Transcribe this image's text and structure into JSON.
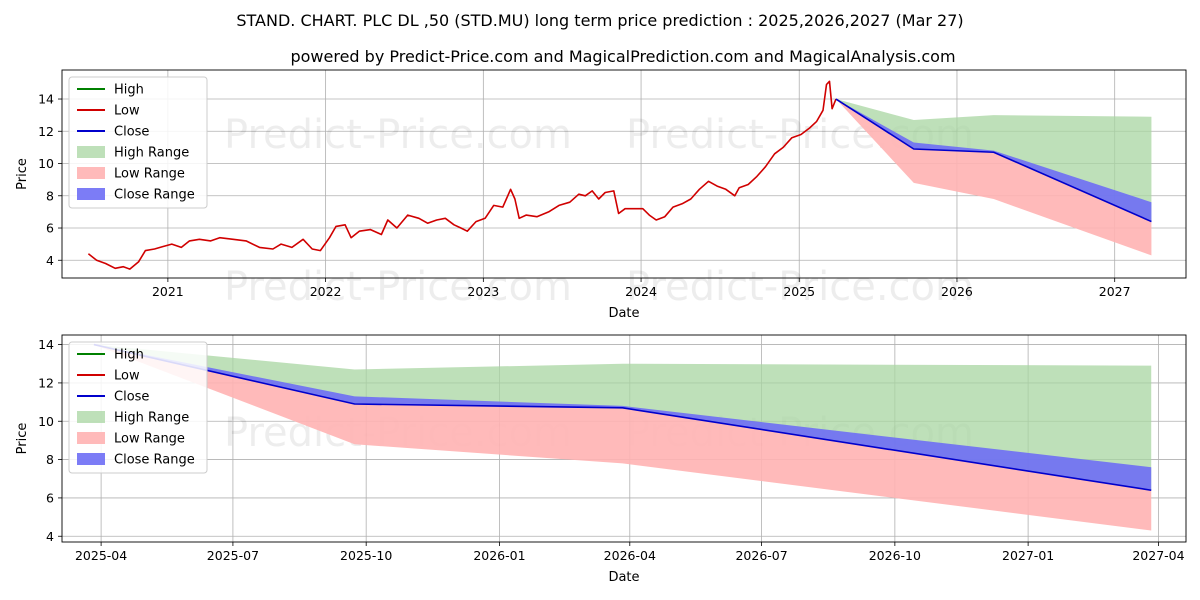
{
  "title": "STAND. CHART. PLC DL ,50 (STD.MU) long term price prediction : 2025,2026,2027 (Mar 27)",
  "subtitle": "powered by Predict-Price.com and MagicalPrediction.com and MagicalAnalysis.com",
  "watermark": "Predict-Price.com",
  "colors": {
    "high": "#008000",
    "low": "#d00000",
    "close": "#0000cc",
    "high_range": "#a8d5a2",
    "low_range": "#ffb3b3",
    "close_range": "#6e6ef5"
  },
  "chart_data": [
    {
      "type": "line",
      "xlabel": "Date",
      "ylabel": "Price",
      "xlim": [
        "2020-05-01",
        "2027-06-15"
      ],
      "ylim": [
        2.9,
        15.8
      ],
      "xticks": [
        {
          "date": "2021-01-01",
          "label": "2021"
        },
        {
          "date": "2022-01-01",
          "label": "2022"
        },
        {
          "date": "2023-01-01",
          "label": "2023"
        },
        {
          "date": "2024-01-01",
          "label": "2024"
        },
        {
          "date": "2025-01-01",
          "label": "2025"
        },
        {
          "date": "2026-01-01",
          "label": "2026"
        },
        {
          "date": "2027-01-01",
          "label": "2027"
        }
      ],
      "yticks": [
        4,
        6,
        8,
        10,
        12,
        14
      ],
      "grid": true,
      "legend_position": "top-left",
      "legend": [
        "High",
        "Low",
        "Close",
        "High Range",
        "Low Range",
        "Close Range"
      ],
      "history": [
        [
          "2020-07-01",
          4.4
        ],
        [
          "2020-07-20",
          4.0
        ],
        [
          "2020-08-10",
          3.8
        ],
        [
          "2020-09-01",
          3.5
        ],
        [
          "2020-09-20",
          3.6
        ],
        [
          "2020-10-05",
          3.45
        ],
        [
          "2020-10-25",
          3.9
        ],
        [
          "2020-11-10",
          4.6
        ],
        [
          "2020-12-01",
          4.7
        ],
        [
          "2020-12-20",
          4.85
        ],
        [
          "2021-01-10",
          5.0
        ],
        [
          "2021-02-01",
          4.8
        ],
        [
          "2021-02-20",
          5.2
        ],
        [
          "2021-03-15",
          5.3
        ],
        [
          "2021-04-10",
          5.2
        ],
        [
          "2021-05-01",
          5.4
        ],
        [
          "2021-06-01",
          5.3
        ],
        [
          "2021-07-01",
          5.2
        ],
        [
          "2021-08-01",
          4.8
        ],
        [
          "2021-09-01",
          4.7
        ],
        [
          "2021-09-20",
          5.0
        ],
        [
          "2021-10-15",
          4.8
        ],
        [
          "2021-11-10",
          5.3
        ],
        [
          "2021-12-01",
          4.7
        ],
        [
          "2021-12-20",
          4.6
        ],
        [
          "2022-01-10",
          5.4
        ],
        [
          "2022-01-25",
          6.1
        ],
        [
          "2022-02-15",
          6.2
        ],
        [
          "2022-03-01",
          5.4
        ],
        [
          "2022-03-20",
          5.8
        ],
        [
          "2022-04-15",
          5.9
        ],
        [
          "2022-05-10",
          5.6
        ],
        [
          "2022-05-25",
          6.5
        ],
        [
          "2022-06-15",
          6.0
        ],
        [
          "2022-07-10",
          6.8
        ],
        [
          "2022-08-05",
          6.6
        ],
        [
          "2022-08-25",
          6.3
        ],
        [
          "2022-09-15",
          6.5
        ],
        [
          "2022-10-05",
          6.6
        ],
        [
          "2022-10-25",
          6.2
        ],
        [
          "2022-11-10",
          6.0
        ],
        [
          "2022-11-25",
          5.8
        ],
        [
          "2022-12-15",
          6.4
        ],
        [
          "2023-01-05",
          6.6
        ],
        [
          "2023-01-25",
          7.4
        ],
        [
          "2023-02-15",
          7.3
        ],
        [
          "2023-03-05",
          8.4
        ],
        [
          "2023-03-15",
          7.8
        ],
        [
          "2023-03-25",
          6.6
        ],
        [
          "2023-04-10",
          6.8
        ],
        [
          "2023-05-05",
          6.7
        ],
        [
          "2023-06-01",
          7.0
        ],
        [
          "2023-06-25",
          7.4
        ],
        [
          "2023-07-20",
          7.6
        ],
        [
          "2023-08-10",
          8.1
        ],
        [
          "2023-08-25",
          8.0
        ],
        [
          "2023-09-10",
          8.3
        ],
        [
          "2023-09-25",
          7.8
        ],
        [
          "2023-10-10",
          8.2
        ],
        [
          "2023-10-30",
          8.3
        ],
        [
          "2023-11-10",
          6.9
        ],
        [
          "2023-11-25",
          7.2
        ],
        [
          "2023-12-15",
          7.2
        ],
        [
          "2024-01-05",
          7.2
        ],
        [
          "2024-01-20",
          6.8
        ],
        [
          "2024-02-05",
          6.5
        ],
        [
          "2024-02-25",
          6.7
        ],
        [
          "2024-03-15",
          7.3
        ],
        [
          "2024-04-05",
          7.5
        ],
        [
          "2024-04-25",
          7.8
        ],
        [
          "2024-05-15",
          8.4
        ],
        [
          "2024-06-05",
          8.9
        ],
        [
          "2024-06-25",
          8.6
        ],
        [
          "2024-07-15",
          8.4
        ],
        [
          "2024-08-05",
          8.0
        ],
        [
          "2024-08-15",
          8.5
        ],
        [
          "2024-09-05",
          8.7
        ],
        [
          "2024-09-25",
          9.2
        ],
        [
          "2024-10-15",
          9.8
        ],
        [
          "2024-11-05",
          10.6
        ],
        [
          "2024-11-25",
          11.0
        ],
        [
          "2024-12-15",
          11.6
        ],
        [
          "2025-01-05",
          11.8
        ],
        [
          "2025-01-25",
          12.2
        ],
        [
          "2025-02-10",
          12.6
        ],
        [
          "2025-02-25",
          13.3
        ],
        [
          "2025-03-05",
          14.9
        ],
        [
          "2025-03-12",
          15.1
        ],
        [
          "2025-03-18",
          13.4
        ],
        [
          "2025-03-27",
          14.0
        ]
      ],
      "forecast_dates": [
        "2025-03-27",
        "2025-09-23",
        "2026-03-27",
        "2027-03-27"
      ],
      "forecast_close": [
        14.0,
        10.9,
        10.7,
        6.4
      ],
      "close_range_upper": [
        14.0,
        11.3,
        10.8,
        7.6
      ],
      "high_range_upper": [
        14.0,
        12.7,
        13.0,
        12.9
      ],
      "low_range_lower": [
        14.0,
        8.8,
        7.8,
        4.3
      ]
    },
    {
      "type": "line",
      "xlabel": "Date",
      "ylabel": "Price",
      "xlim": [
        "2025-03-05",
        "2027-04-20"
      ],
      "ylim": [
        3.7,
        14.5
      ],
      "xticks": [
        {
          "date": "2025-04-01",
          "label": "2025-04"
        },
        {
          "date": "2025-07-01",
          "label": "2025-07"
        },
        {
          "date": "2025-10-01",
          "label": "2025-10"
        },
        {
          "date": "2026-01-01",
          "label": "2026-01"
        },
        {
          "date": "2026-04-01",
          "label": "2026-04"
        },
        {
          "date": "2026-07-01",
          "label": "2026-07"
        },
        {
          "date": "2026-10-01",
          "label": "2026-10"
        },
        {
          "date": "2027-01-01",
          "label": "2027-01"
        },
        {
          "date": "2027-04-01",
          "label": "2027-04"
        }
      ],
      "yticks": [
        4,
        6,
        8,
        10,
        12,
        14
      ],
      "grid": true,
      "legend_position": "top-left",
      "legend": [
        "High",
        "Low",
        "Close",
        "High Range",
        "Low Range",
        "Close Range"
      ],
      "forecast_dates": [
        "2025-03-27",
        "2025-09-23",
        "2026-03-27",
        "2027-03-27"
      ],
      "forecast_close": [
        14.0,
        10.9,
        10.7,
        6.4
      ],
      "close_range_upper": [
        14.0,
        11.3,
        10.8,
        7.6
      ],
      "high_range_upper": [
        14.0,
        12.7,
        13.0,
        12.9
      ],
      "low_range_lower": [
        14.0,
        8.8,
        7.8,
        4.3
      ]
    }
  ]
}
